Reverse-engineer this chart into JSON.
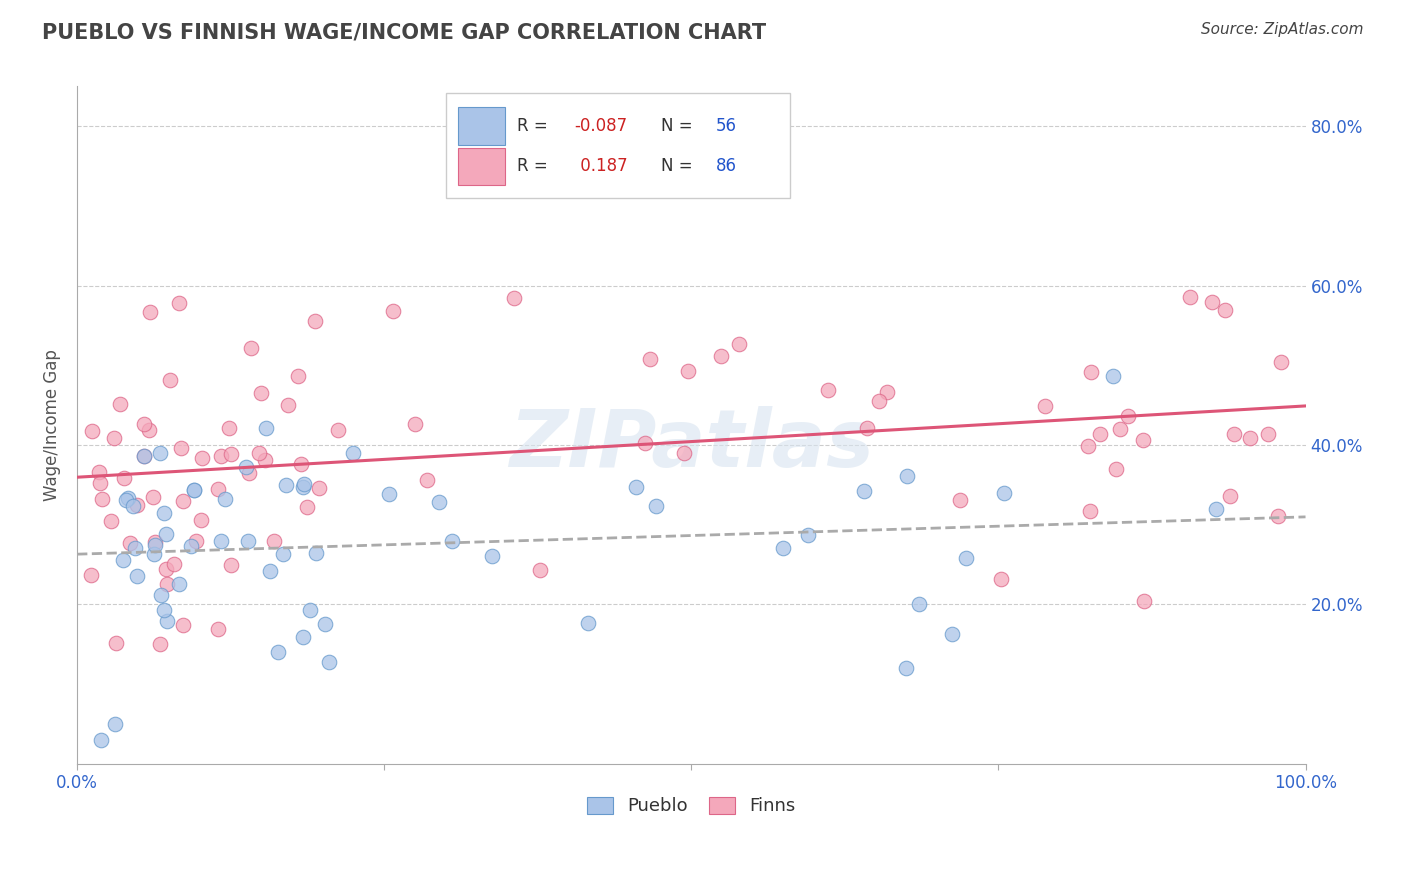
{
  "title": "PUEBLO VS FINNISH WAGE/INCOME GAP CORRELATION CHART",
  "source": "Source: ZipAtlas.com",
  "ylabel": "Wage/Income Gap",
  "watermark": "ZIPatlas",
  "pueblo_R": -0.087,
  "pueblo_N": 56,
  "finns_R": 0.187,
  "finns_N": 86,
  "pueblo_color": "#aac4e8",
  "finns_color": "#f4a8bb",
  "pueblo_edge_color": "#6699cc",
  "finns_edge_color": "#dd6688",
  "pueblo_trend_color": "#4477bb",
  "finns_trend_color": "#dd5577",
  "xlim": [
    0.0,
    1.0
  ],
  "ylim": [
    0.0,
    0.85
  ],
  "x_tick_labels": [
    "0.0%",
    "",
    "",
    "",
    "100.0%"
  ],
  "y_tick_labels": [
    "20.0%",
    "40.0%",
    "60.0%",
    "80.0%"
  ],
  "y_ticks": [
    0.2,
    0.4,
    0.6,
    0.8
  ],
  "grid_color": "#cccccc",
  "title_color": "#444444",
  "axis_label_color": "#3366cc",
  "legend_edge_color": "#cccccc",
  "source_color": "#444444",
  "watermark_color": "#d8e4f0",
  "seed": 42
}
